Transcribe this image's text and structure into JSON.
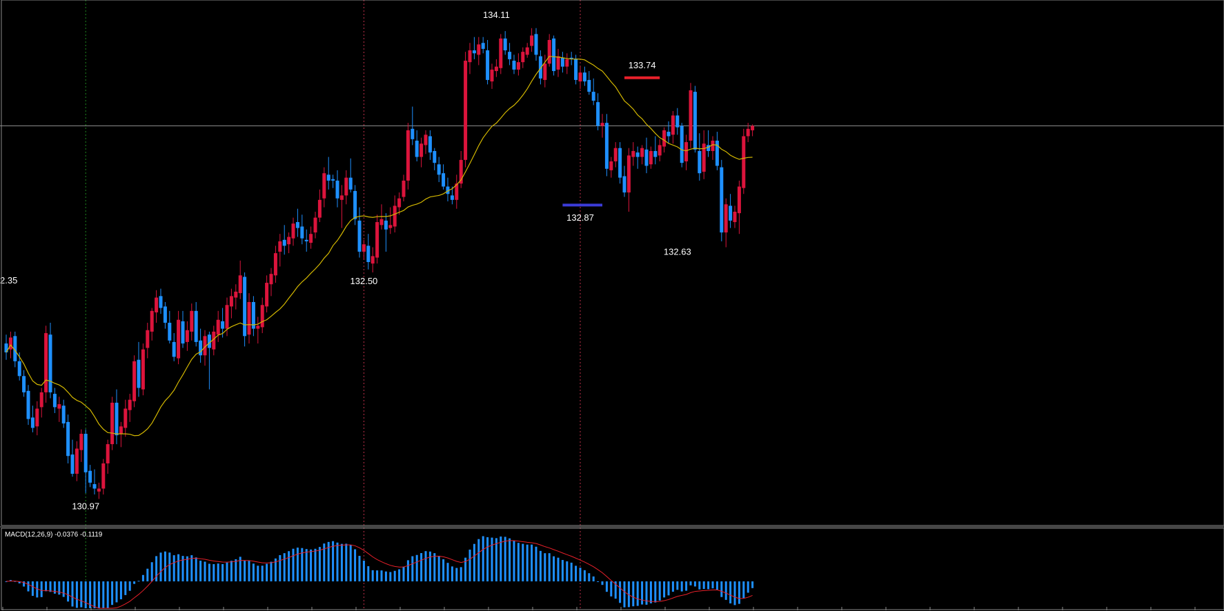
{
  "colors": {
    "background": "#000000",
    "bull": "#dc143c",
    "bear": "#1e90ff",
    "ma": "#d4b800",
    "signal": "#e8202a",
    "histogram": "#1e90ff",
    "grid": "#8c8c8c",
    "vline_green": "#1f8a1f",
    "vline_red": "#c0304a",
    "support": "#3b3bd8",
    "resistance": "#e8202a",
    "label": "#ffffff"
  },
  "chart_data": {
    "type": "candlestick",
    "ylim": [
      130.76,
      134.3
    ],
    "horizontal_line": 133.45,
    "cut_off_price_label": "2.35",
    "vertical_markers": [
      {
        "bar": 18,
        "style": "green-dotted"
      },
      {
        "bar": 81,
        "style": "red-dotted"
      },
      {
        "bar": 130,
        "style": "red-dotted"
      }
    ],
    "support": {
      "price": 132.915,
      "from_bar": 126,
      "to_bar": 135
    },
    "resistance": {
      "price": 133.775,
      "from_bar": 140,
      "to_bar": 148
    },
    "annotations": [
      {
        "text": "130.97",
        "bar": 18,
        "price": 130.86
      },
      {
        "text": "132.50",
        "bar": 81,
        "price": 132.38
      },
      {
        "text": "134.11",
        "bar": 111,
        "price": 134.18
      },
      {
        "text": "132.87",
        "bar": 130,
        "price": 132.81
      },
      {
        "text": "133.74",
        "bar": 144,
        "price": 133.84
      },
      {
        "text": "132.63",
        "bar": 152,
        "price": 132.58
      }
    ],
    "candles_ohlc": [
      [
        131.98,
        132.04,
        131.87,
        131.92
      ],
      [
        131.94,
        132.06,
        131.88,
        132.02
      ],
      [
        132.03,
        132.06,
        131.82,
        131.86
      ],
      [
        131.86,
        131.92,
        131.73,
        131.76
      ],
      [
        131.76,
        131.8,
        131.62,
        131.65
      ],
      [
        131.66,
        131.7,
        131.43,
        131.47
      ],
      [
        131.48,
        131.56,
        131.38,
        131.41
      ],
      [
        131.42,
        131.59,
        131.36,
        131.54
      ],
      [
        131.55,
        131.68,
        131.48,
        131.65
      ],
      [
        131.65,
        132.1,
        131.58,
        132.05
      ],
      [
        132.04,
        132.12,
        131.61,
        131.65
      ],
      [
        131.64,
        131.68,
        131.51,
        131.55
      ],
      [
        131.54,
        131.62,
        131.45,
        131.57
      ],
      [
        131.56,
        131.6,
        131.41,
        131.44
      ],
      [
        131.45,
        131.5,
        131.17,
        131.22
      ],
      [
        131.23,
        131.33,
        131.08,
        131.1
      ],
      [
        131.1,
        131.32,
        131.05,
        131.27
      ],
      [
        131.26,
        131.4,
        131.18,
        131.37
      ],
      [
        131.37,
        131.4,
        130.97,
        131.11
      ],
      [
        131.12,
        131.16,
        131.01,
        131.04
      ],
      [
        131.03,
        131.13,
        130.96,
        131.0
      ],
      [
        130.98,
        131.04,
        130.93,
        131.0
      ],
      [
        131.0,
        131.2,
        130.96,
        131.17
      ],
      [
        131.17,
        131.33,
        131.1,
        131.3
      ],
      [
        131.3,
        131.62,
        131.26,
        131.58
      ],
      [
        131.58,
        131.67,
        131.3,
        131.36
      ],
      [
        131.37,
        131.45,
        131.28,
        131.42
      ],
      [
        131.41,
        131.6,
        131.35,
        131.54
      ],
      [
        131.53,
        131.64,
        131.45,
        131.6
      ],
      [
        131.59,
        131.9,
        131.55,
        131.86
      ],
      [
        131.87,
        131.99,
        131.62,
        131.68
      ],
      [
        131.67,
        131.98,
        131.63,
        131.94
      ],
      [
        131.95,
        132.12,
        131.88,
        132.07
      ],
      [
        132.06,
        132.22,
        132.0,
        132.2
      ],
      [
        132.19,
        132.34,
        132.12,
        132.29
      ],
      [
        132.3,
        132.35,
        132.18,
        132.22
      ],
      [
        132.23,
        132.26,
        132.08,
        132.12
      ],
      [
        132.12,
        132.2,
        131.98,
        132.0
      ],
      [
        131.99,
        132.05,
        131.86,
        131.89
      ],
      [
        131.88,
        132.2,
        131.84,
        132.14
      ],
      [
        132.13,
        132.2,
        131.95,
        131.98
      ],
      [
        131.99,
        132.13,
        131.93,
        132.07
      ],
      [
        132.06,
        132.25,
        132.0,
        132.2
      ],
      [
        132.2,
        132.26,
        131.96,
        131.99
      ],
      [
        132.0,
        132.08,
        131.85,
        131.9
      ],
      [
        131.9,
        132.07,
        131.83,
        132.03
      ],
      [
        132.04,
        132.06,
        131.67,
        131.95
      ],
      [
        131.94,
        132.1,
        131.9,
        132.06
      ],
      [
        132.04,
        132.2,
        131.99,
        132.14
      ],
      [
        132.13,
        132.22,
        132.02,
        132.08
      ],
      [
        132.08,
        132.29,
        132.03,
        132.24
      ],
      [
        132.23,
        132.35,
        132.15,
        132.3
      ],
      [
        132.29,
        132.38,
        132.21,
        132.33
      ],
      [
        132.32,
        132.54,
        132.28,
        132.44
      ],
      [
        132.43,
        132.46,
        131.96,
        132.03
      ],
      [
        132.04,
        132.32,
        131.98,
        132.26
      ],
      [
        132.26,
        132.3,
        132.03,
        132.08
      ],
      [
        132.08,
        132.16,
        131.98,
        132.1
      ],
      [
        132.09,
        132.29,
        132.05,
        132.24
      ],
      [
        132.23,
        132.44,
        132.19,
        132.39
      ],
      [
        132.38,
        132.49,
        132.3,
        132.45
      ],
      [
        132.44,
        132.64,
        132.39,
        132.59
      ],
      [
        132.6,
        132.72,
        132.5,
        132.67
      ],
      [
        132.68,
        132.78,
        132.58,
        132.64
      ],
      [
        132.65,
        132.73,
        132.59,
        132.7
      ],
      [
        132.69,
        132.83,
        132.64,
        132.79
      ],
      [
        132.8,
        132.89,
        132.7,
        132.76
      ],
      [
        132.77,
        132.85,
        132.65,
        132.69
      ],
      [
        132.68,
        132.75,
        132.6,
        132.67
      ],
      [
        132.66,
        132.77,
        132.62,
        132.72
      ],
      [
        132.73,
        132.87,
        132.69,
        132.83
      ],
      [
        132.83,
        133.02,
        132.8,
        132.95
      ],
      [
        132.96,
        133.17,
        132.9,
        133.13
      ],
      [
        133.12,
        133.24,
        133.02,
        133.08
      ],
      [
        133.09,
        133.12,
        133.03,
        133.08
      ],
      [
        133.08,
        133.15,
        132.9,
        132.96
      ],
      [
        132.95,
        133.05,
        132.76,
        132.98
      ],
      [
        132.98,
        133.15,
        132.92,
        133.1
      ],
      [
        133.1,
        133.23,
        133.0,
        133.02
      ],
      [
        133.01,
        133.05,
        132.78,
        132.82
      ],
      [
        132.81,
        132.9,
        132.56,
        132.6
      ],
      [
        132.6,
        132.68,
        132.55,
        132.65
      ],
      [
        132.64,
        132.72,
        132.48,
        132.53
      ],
      [
        132.52,
        132.63,
        132.46,
        132.57
      ],
      [
        132.56,
        132.85,
        132.52,
        132.8
      ],
      [
        132.78,
        132.92,
        132.75,
        132.82
      ],
      [
        132.81,
        132.86,
        132.6,
        132.75
      ],
      [
        132.76,
        132.9,
        132.72,
        132.78
      ],
      [
        132.77,
        132.98,
        132.73,
        132.91
      ],
      [
        132.9,
        133.0,
        132.85,
        132.96
      ],
      [
        132.97,
        133.12,
        132.94,
        133.08
      ],
      [
        133.08,
        133.47,
        133.02,
        133.42
      ],
      [
        133.43,
        133.58,
        133.32,
        133.36
      ],
      [
        133.35,
        133.42,
        133.21,
        133.24
      ],
      [
        133.24,
        133.37,
        133.17,
        133.33
      ],
      [
        133.32,
        133.42,
        133.26,
        133.39
      ],
      [
        133.38,
        133.42,
        133.22,
        133.27
      ],
      [
        133.28,
        133.3,
        133.15,
        133.2
      ],
      [
        133.19,
        133.24,
        133.07,
        133.12
      ],
      [
        133.13,
        133.19,
        133.02,
        133.04
      ],
      [
        133.04,
        133.1,
        132.94,
        132.99
      ],
      [
        132.98,
        133.04,
        132.92,
        132.95
      ],
      [
        132.95,
        133.12,
        132.89,
        133.06
      ],
      [
        133.06,
        133.28,
        133.03,
        133.22
      ],
      [
        133.22,
        133.95,
        133.17,
        133.89
      ],
      [
        133.88,
        134.01,
        133.8,
        133.96
      ],
      [
        133.96,
        134.05,
        133.9,
        133.94
      ],
      [
        133.93,
        134.05,
        133.86,
        134.0
      ],
      [
        134.01,
        134.05,
        133.94,
        133.97
      ],
      [
        133.96,
        134.03,
        133.73,
        133.76
      ],
      [
        133.75,
        133.87,
        133.7,
        133.83
      ],
      [
        133.82,
        133.9,
        133.78,
        133.85
      ],
      [
        133.84,
        134.07,
        133.8,
        134.04
      ],
      [
        134.04,
        134.09,
        133.93,
        133.96
      ],
      [
        133.95,
        134.01,
        133.86,
        133.9
      ],
      [
        133.89,
        133.93,
        133.8,
        133.83
      ],
      [
        133.83,
        133.94,
        133.79,
        133.88
      ],
      [
        133.88,
        133.98,
        133.84,
        133.95
      ],
      [
        133.93,
        134.01,
        133.91,
        133.98
      ],
      [
        133.99,
        134.11,
        133.95,
        134.06
      ],
      [
        134.07,
        134.11,
        133.89,
        133.93
      ],
      [
        133.92,
        133.96,
        133.73,
        133.77
      ],
      [
        133.76,
        133.93,
        133.71,
        133.87
      ],
      [
        133.87,
        134.07,
        133.85,
        134.03
      ],
      [
        134.04,
        134.06,
        133.79,
        133.82
      ],
      [
        133.83,
        133.97,
        133.78,
        133.92
      ],
      [
        133.91,
        133.95,
        133.81,
        133.85
      ],
      [
        133.85,
        133.94,
        133.8,
        133.9
      ],
      [
        133.91,
        133.95,
        133.86,
        133.9
      ],
      [
        133.9,
        133.93,
        133.73,
        133.76
      ],
      [
        133.75,
        133.85,
        133.7,
        133.81
      ],
      [
        133.81,
        133.85,
        133.72,
        133.75
      ],
      [
        133.76,
        133.82,
        133.66,
        133.68
      ],
      [
        133.68,
        133.77,
        133.59,
        133.62
      ],
      [
        133.61,
        133.67,
        133.42,
        133.45
      ],
      [
        133.45,
        133.53,
        133.37,
        133.47
      ],
      [
        133.47,
        133.53,
        133.11,
        133.16
      ],
      [
        133.15,
        133.24,
        133.1,
        133.21
      ],
      [
        133.21,
        133.34,
        133.17,
        133.3
      ],
      [
        133.3,
        133.34,
        133.06,
        133.1
      ],
      [
        133.11,
        133.18,
        132.97,
        133.0
      ],
      [
        133.0,
        133.3,
        132.87,
        133.25
      ],
      [
        133.24,
        133.34,
        133.18,
        133.28
      ],
      [
        133.27,
        133.31,
        133.16,
        133.24
      ],
      [
        133.24,
        133.32,
        133.19,
        133.3
      ],
      [
        133.29,
        133.37,
        133.13,
        133.18
      ],
      [
        133.19,
        133.31,
        133.16,
        133.28
      ],
      [
        133.28,
        133.38,
        133.19,
        133.24
      ],
      [
        133.25,
        133.36,
        133.21,
        133.32
      ],
      [
        133.31,
        133.44,
        133.27,
        133.42
      ],
      [
        133.41,
        133.48,
        133.33,
        133.38
      ],
      [
        133.39,
        133.55,
        133.33,
        133.52
      ],
      [
        133.52,
        133.57,
        133.39,
        133.44
      ],
      [
        133.45,
        133.47,
        133.17,
        133.2
      ],
      [
        133.21,
        133.39,
        133.15,
        133.34
      ],
      [
        133.35,
        133.74,
        133.3,
        133.69
      ],
      [
        133.68,
        133.72,
        133.27,
        133.29
      ],
      [
        133.28,
        133.4,
        133.08,
        133.13
      ],
      [
        133.14,
        133.42,
        133.09,
        133.33
      ],
      [
        133.32,
        133.42,
        133.24,
        133.28
      ],
      [
        133.28,
        133.38,
        133.22,
        133.35
      ],
      [
        133.35,
        133.41,
        133.15,
        133.18
      ],
      [
        133.17,
        133.22,
        132.67,
        132.73
      ],
      [
        132.73,
        132.96,
        132.63,
        132.92
      ],
      [
        132.91,
        132.99,
        132.76,
        132.81
      ],
      [
        132.8,
        132.91,
        132.76,
        132.87
      ],
      [
        132.86,
        133.08,
        132.72,
        133.04
      ],
      [
        133.03,
        133.43,
        132.99,
        133.38
      ],
      [
        133.38,
        133.47,
        133.34,
        133.43
      ],
      [
        133.42,
        133.46,
        133.38,
        133.45
      ]
    ],
    "ma_period": 20,
    "macd": {
      "label": "MACD(12,26,9) -0.0376 -0.1119",
      "histogram_range": [
        -0.16,
        0.3
      ]
    }
  }
}
